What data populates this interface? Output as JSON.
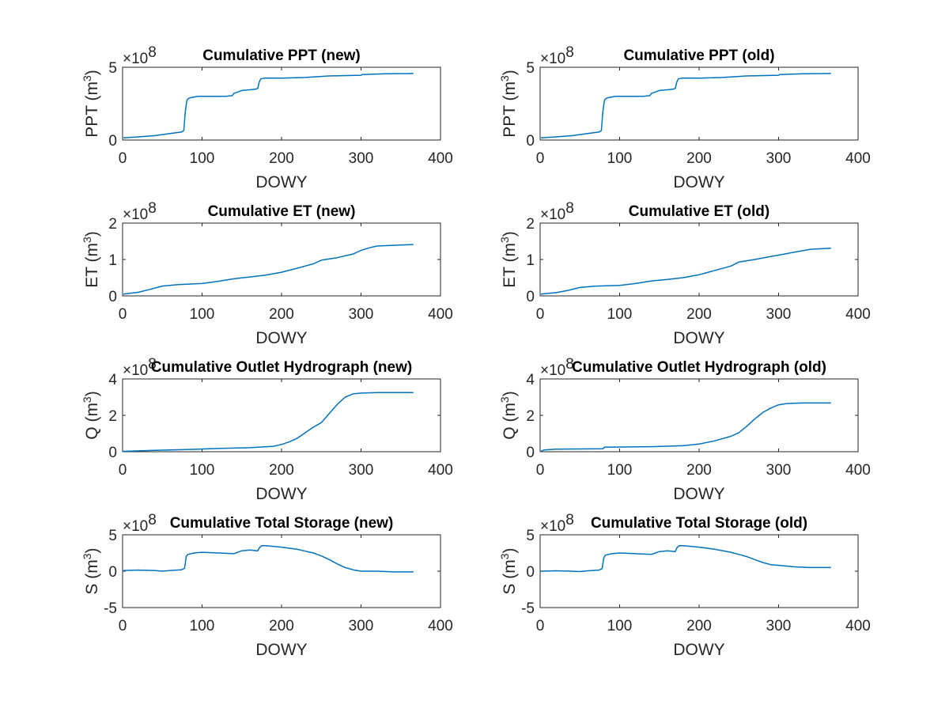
{
  "figure": {
    "background": "#ffffff",
    "line_color": "#0072BD",
    "axis_color": "#262626"
  },
  "chart_data": [
    {
      "type": "line",
      "title": "Cumulative PPT (new)",
      "xlabel": "DOWY",
      "ylabel": "PPT (m",
      "ylabel_sup": "3",
      "ylabel_end": ")",
      "exponent_base": "×10",
      "exponent_power": "8",
      "exponent_scale": 100000000,
      "xlim": [
        0,
        400
      ],
      "ylim": [
        0,
        5
      ],
      "xticks": [
        "0",
        "100",
        "200",
        "300",
        "400"
      ],
      "yticks": [
        "0",
        "5"
      ],
      "ytick_values": [
        0,
        5
      ],
      "series": [
        {
          "x": [
            1,
            20,
            40,
            60,
            74,
            77,
            79,
            81,
            83,
            85,
            95,
            130,
            138,
            140,
            150,
            160,
            168,
            170,
            172,
            174,
            178,
            200,
            230,
            260,
            300,
            302,
            330,
            366
          ],
          "y": [
            0.15,
            0.22,
            0.3,
            0.45,
            0.55,
            0.65,
            2.0,
            2.75,
            2.85,
            2.9,
            3.0,
            3.0,
            3.05,
            3.2,
            3.4,
            3.45,
            3.5,
            3.55,
            4.0,
            4.2,
            4.25,
            4.25,
            4.3,
            4.4,
            4.45,
            4.5,
            4.55,
            4.57
          ]
        }
      ]
    },
    {
      "type": "line",
      "title": "Cumulative PPT (old)",
      "xlabel": "DOWY",
      "ylabel": "PPT (m",
      "ylabel_sup": "3",
      "ylabel_end": ")",
      "exponent_base": "×10",
      "exponent_power": "8",
      "exponent_scale": 100000000,
      "xlim": [
        0,
        400
      ],
      "ylim": [
        0,
        5
      ],
      "xticks": [
        "0",
        "100",
        "200",
        "300",
        "400"
      ],
      "yticks": [
        "0",
        "5"
      ],
      "ytick_values": [
        0,
        5
      ],
      "series": [
        {
          "x": [
            1,
            20,
            40,
            60,
            74,
            77,
            79,
            81,
            83,
            85,
            95,
            130,
            138,
            140,
            150,
            160,
            168,
            170,
            172,
            174,
            178,
            200,
            230,
            260,
            300,
            302,
            330,
            366
          ],
          "y": [
            0.15,
            0.22,
            0.3,
            0.45,
            0.55,
            0.65,
            2.0,
            2.75,
            2.85,
            2.9,
            3.0,
            3.0,
            3.05,
            3.2,
            3.4,
            3.45,
            3.5,
            3.55,
            4.0,
            4.2,
            4.25,
            4.25,
            4.3,
            4.4,
            4.45,
            4.5,
            4.55,
            4.57
          ]
        }
      ]
    },
    {
      "type": "line",
      "title": "Cumulative ET (new)",
      "xlabel": "DOWY",
      "ylabel": "ET (m",
      "ylabel_sup": "3",
      "ylabel_end": ")",
      "exponent_base": "×10",
      "exponent_power": "8",
      "exponent_scale": 100000000,
      "xlim": [
        0,
        400
      ],
      "ylim": [
        0,
        2
      ],
      "xticks": [
        "0",
        "100",
        "200",
        "300",
        "400"
      ],
      "yticks": [
        "0",
        "1",
        "2"
      ],
      "ytick_values": [
        0,
        1,
        2
      ],
      "series": [
        {
          "x": [
            1,
            20,
            35,
            50,
            70,
            100,
            120,
            140,
            160,
            180,
            200,
            220,
            240,
            250,
            270,
            290,
            300,
            310,
            320,
            340,
            366
          ],
          "y": [
            0.05,
            0.1,
            0.18,
            0.27,
            0.31,
            0.34,
            0.4,
            0.47,
            0.52,
            0.57,
            0.65,
            0.76,
            0.88,
            0.98,
            1.05,
            1.15,
            1.25,
            1.32,
            1.37,
            1.39,
            1.41
          ]
        }
      ]
    },
    {
      "type": "line",
      "title": "Cumulative ET (old)",
      "xlabel": "DOWY",
      "ylabel": "ET (m",
      "ylabel_sup": "3",
      "ylabel_end": ")",
      "exponent_base": "×10",
      "exponent_power": "8",
      "exponent_scale": 100000000,
      "xlim": [
        0,
        400
      ],
      "ylim": [
        0,
        2
      ],
      "xticks": [
        "0",
        "100",
        "200",
        "300",
        "400"
      ],
      "yticks": [
        "0",
        "1",
        "2"
      ],
      "ytick_values": [
        0,
        1,
        2
      ],
      "series": [
        {
          "x": [
            1,
            20,
            35,
            50,
            70,
            100,
            120,
            140,
            160,
            180,
            200,
            220,
            240,
            250,
            270,
            290,
            300,
            320,
            340,
            366
          ],
          "y": [
            0.05,
            0.09,
            0.15,
            0.23,
            0.27,
            0.29,
            0.34,
            0.41,
            0.45,
            0.5,
            0.58,
            0.7,
            0.82,
            0.93,
            1.0,
            1.08,
            1.12,
            1.2,
            1.28,
            1.31
          ]
        }
      ]
    },
    {
      "type": "line",
      "title": "Cumulative Outlet Hydrograph (new)",
      "xlabel": "DOWY",
      "ylabel": "Q (m",
      "ylabel_sup": "3",
      "ylabel_end": ")",
      "exponent_base": "×10",
      "exponent_power": "8",
      "exponent_scale": 100000000,
      "xlim": [
        0,
        400
      ],
      "ylim": [
        0,
        4
      ],
      "xticks": [
        "0",
        "100",
        "200",
        "300",
        "400"
      ],
      "yticks": [
        "0",
        "2",
        "4"
      ],
      "ytick_values": [
        0,
        2,
        4
      ],
      "series": [
        {
          "x": [
            1,
            40,
            80,
            120,
            160,
            190,
            200,
            210,
            220,
            230,
            240,
            250,
            260,
            270,
            280,
            290,
            300,
            320,
            366
          ],
          "y": [
            0.02,
            0.08,
            0.12,
            0.18,
            0.22,
            0.3,
            0.4,
            0.55,
            0.75,
            1.05,
            1.35,
            1.6,
            2.1,
            2.6,
            3.0,
            3.18,
            3.22,
            3.25,
            3.25
          ]
        }
      ]
    },
    {
      "type": "line",
      "title": "Cumulative Outlet Hydrograph (old)",
      "xlabel": "DOWY",
      "ylabel": "Q (m",
      "ylabel_sup": "3",
      "ylabel_end": ")",
      "exponent_base": "×10",
      "exponent_power": "8",
      "exponent_scale": 100000000,
      "xlim": [
        0,
        400
      ],
      "ylim": [
        0,
        4
      ],
      "xticks": [
        "0",
        "100",
        "200",
        "300",
        "400"
      ],
      "yticks": [
        "0",
        "2",
        "4"
      ],
      "ytick_values": [
        0,
        2,
        4
      ],
      "series": [
        {
          "x": [
            1,
            5,
            20,
            79,
            81,
            140,
            180,
            200,
            220,
            240,
            250,
            260,
            270,
            280,
            290,
            300,
            310,
            330,
            366
          ],
          "y": [
            0.02,
            0.1,
            0.14,
            0.16,
            0.25,
            0.28,
            0.33,
            0.42,
            0.6,
            0.85,
            1.05,
            1.4,
            1.8,
            2.15,
            2.4,
            2.58,
            2.65,
            2.68,
            2.68
          ]
        }
      ]
    },
    {
      "type": "line",
      "title": "Cumulative Total Storage (new)",
      "xlabel": "DOWY",
      "ylabel": "S (m",
      "ylabel_sup": "3",
      "ylabel_end": ")",
      "exponent_base": "×10",
      "exponent_power": "8",
      "exponent_scale": 100000000,
      "xlim": [
        0,
        400
      ],
      "ylim": [
        -5,
        5
      ],
      "xticks": [
        "0",
        "100",
        "200",
        "300",
        "400"
      ],
      "yticks": [
        "-5",
        "0",
        "5"
      ],
      "ytick_values": [
        -5,
        0,
        5
      ],
      "series": [
        {
          "x": [
            1,
            20,
            40,
            50,
            60,
            74,
            78,
            80,
            82,
            90,
            100,
            120,
            140,
            145,
            150,
            160,
            170,
            172,
            175,
            180,
            200,
            220,
            240,
            250,
            260,
            270,
            280,
            290,
            300,
            320,
            340,
            366
          ],
          "y": [
            0.1,
            0.15,
            0.1,
            0.0,
            0.1,
            0.2,
            0.4,
            2.0,
            2.3,
            2.5,
            2.6,
            2.5,
            2.4,
            2.6,
            2.8,
            2.9,
            2.8,
            3.2,
            3.5,
            3.5,
            3.3,
            3.0,
            2.5,
            2.1,
            1.6,
            1.0,
            0.5,
            0.2,
            0.0,
            0.0,
            -0.1,
            -0.1
          ]
        }
      ]
    },
    {
      "type": "line",
      "title": "Cumulative Total Storage (old)",
      "xlabel": "DOWY",
      "ylabel": "S (m",
      "ylabel_sup": "3",
      "ylabel_end": ")",
      "exponent_base": "×10",
      "exponent_power": "8",
      "exponent_scale": 100000000,
      "xlim": [
        0,
        400
      ],
      "ylim": [
        -5,
        5
      ],
      "xticks": [
        "0",
        "100",
        "200",
        "300",
        "400"
      ],
      "yticks": [
        "-5",
        "0",
        "5"
      ],
      "ytick_values": [
        -5,
        0,
        5
      ],
      "series": [
        {
          "x": [
            1,
            20,
            40,
            50,
            60,
            74,
            78,
            80,
            82,
            90,
            100,
            120,
            140,
            145,
            150,
            160,
            170,
            172,
            175,
            180,
            200,
            220,
            240,
            250,
            260,
            270,
            280,
            290,
            300,
            320,
            340,
            366
          ],
          "y": [
            0.0,
            0.05,
            0.0,
            -0.05,
            0.05,
            0.15,
            0.35,
            1.8,
            2.2,
            2.4,
            2.5,
            2.4,
            2.3,
            2.5,
            2.7,
            2.8,
            2.7,
            3.2,
            3.5,
            3.5,
            3.3,
            3.0,
            2.6,
            2.3,
            2.0,
            1.6,
            1.2,
            0.9,
            0.8,
            0.6,
            0.5,
            0.5
          ]
        }
      ]
    }
  ]
}
